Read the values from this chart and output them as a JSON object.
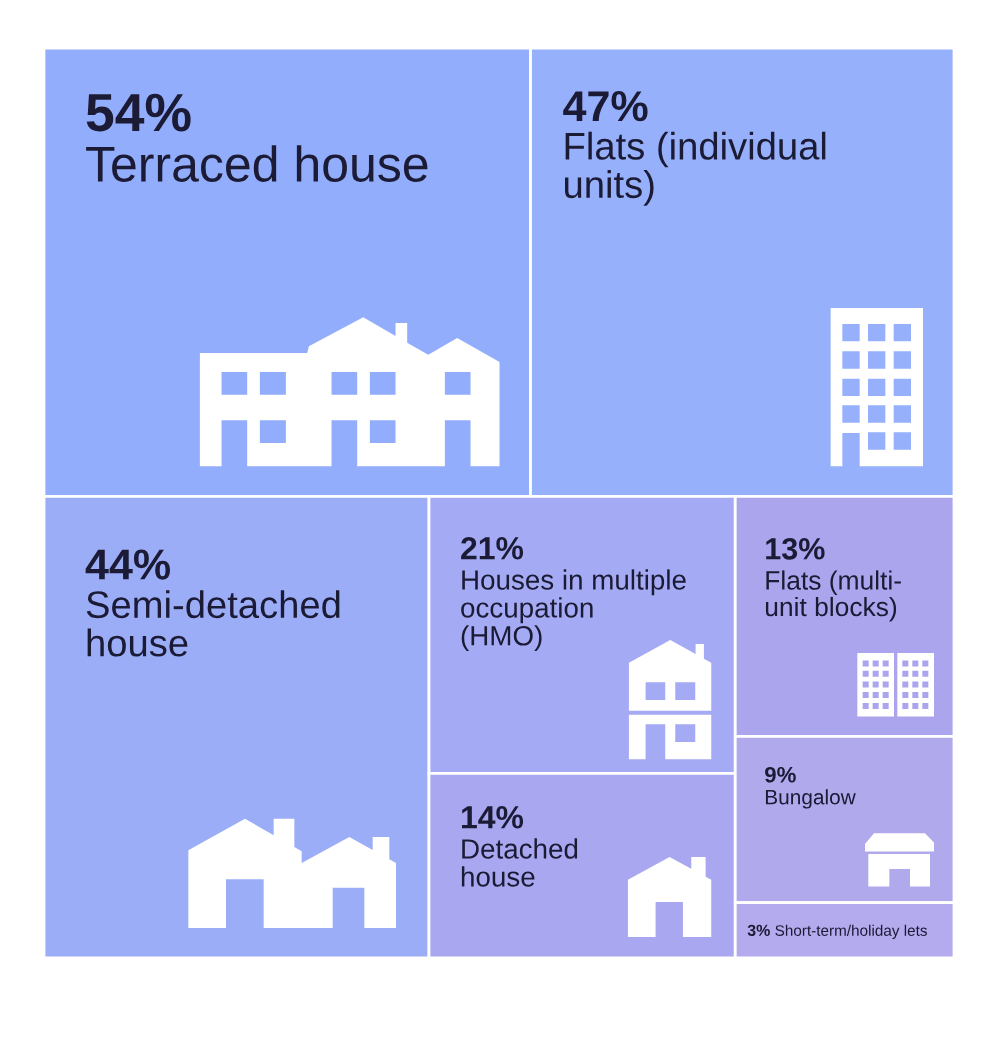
{
  "chart_data": {
    "type": "other",
    "categories": [
      "Terraced house",
      "Flats (individual\nunits)",
      "Semi-detached\nhouse",
      "Houses in multiple\noccupation\n(HMO)",
      "Detached\nhouse",
      "Flats (multi-\nunit blocks)",
      "Bungalow",
      "Short-term/holiday lets"
    ],
    "values": [
      54,
      47,
      44,
      21,
      14,
      13,
      9,
      3
    ],
    "value_labels": [
      "54%",
      "47%",
      "44%",
      "21%",
      "14%",
      "13%",
      "9%",
      "3%"
    ],
    "colors": [
      "#92adfb",
      "#96b0fb",
      "#9cadf8",
      "#a4aaf3",
      "#a9a7ef",
      "#aaa5ec",
      "#b0a9ec",
      "#b4abee"
    ]
  }
}
